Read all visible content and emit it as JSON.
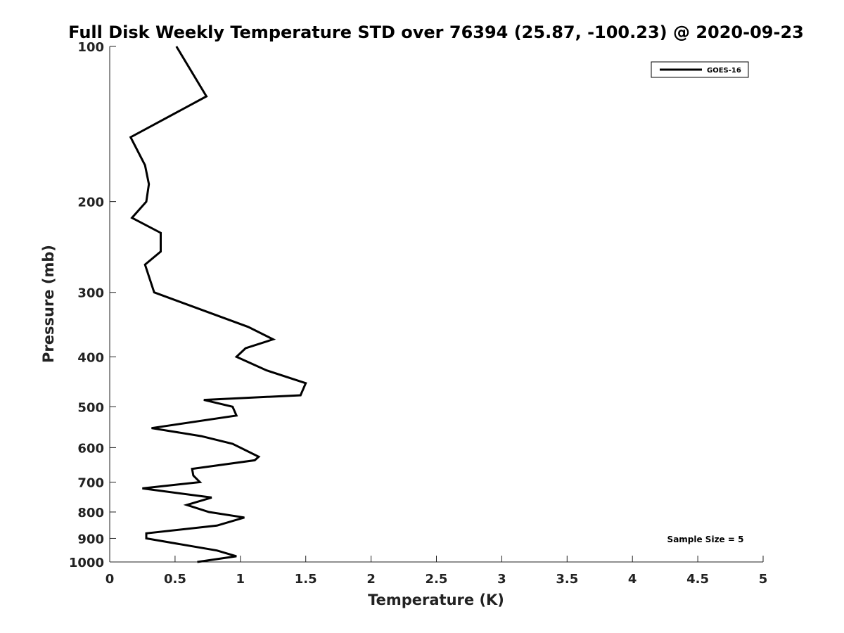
{
  "chart_data": {
    "type": "line",
    "title": "Full Disk Weekly Temperature STD over 76394 (25.87, -100.23) @ 2020-09-23",
    "xlabel": "Temperature (K)",
    "ylabel": "Pressure (mb)",
    "xlim": [
      0,
      5
    ],
    "ylim": [
      100,
      1000
    ],
    "yscale": "log",
    "yaxis_reversed": true,
    "x_ticks": [
      "0",
      "0.5",
      "1",
      "1.5",
      "2",
      "2.5",
      "3",
      "3.5",
      "4",
      "4.5",
      "5"
    ],
    "y_ticks": [
      "100",
      "200",
      "300",
      "400",
      "500",
      "600",
      "700",
      "800",
      "900",
      "1000"
    ],
    "grid": false,
    "legend_position": "top-right",
    "annotation": "Sample Size = 5",
    "series": [
      {
        "name": "GOES-16",
        "color": "#000000",
        "points": [
          {
            "x": 0.51,
            "y": 100
          },
          {
            "x": 0.74,
            "y": 125
          },
          {
            "x": 0.16,
            "y": 150
          },
          {
            "x": 0.27,
            "y": 170
          },
          {
            "x": 0.3,
            "y": 185
          },
          {
            "x": 0.28,
            "y": 200
          },
          {
            "x": 0.17,
            "y": 215
          },
          {
            "x": 0.39,
            "y": 230
          },
          {
            "x": 0.39,
            "y": 250
          },
          {
            "x": 0.27,
            "y": 265
          },
          {
            "x": 0.34,
            "y": 300
          },
          {
            "x": 1.06,
            "y": 350
          },
          {
            "x": 1.25,
            "y": 370
          },
          {
            "x": 1.04,
            "y": 385
          },
          {
            "x": 0.97,
            "y": 400
          },
          {
            "x": 1.2,
            "y": 425
          },
          {
            "x": 1.5,
            "y": 450
          },
          {
            "x": 1.46,
            "y": 475
          },
          {
            "x": 0.72,
            "y": 485
          },
          {
            "x": 0.94,
            "y": 500
          },
          {
            "x": 0.97,
            "y": 520
          },
          {
            "x": 0.32,
            "y": 550
          },
          {
            "x": 0.7,
            "y": 570
          },
          {
            "x": 0.94,
            "y": 590
          },
          {
            "x": 1.14,
            "y": 625
          },
          {
            "x": 1.11,
            "y": 635
          },
          {
            "x": 0.63,
            "y": 660
          },
          {
            "x": 0.64,
            "y": 680
          },
          {
            "x": 0.69,
            "y": 700
          },
          {
            "x": 0.25,
            "y": 720
          },
          {
            "x": 0.78,
            "y": 750
          },
          {
            "x": 0.59,
            "y": 775
          },
          {
            "x": 0.76,
            "y": 800
          },
          {
            "x": 1.03,
            "y": 820
          },
          {
            "x": 0.82,
            "y": 850
          },
          {
            "x": 0.28,
            "y": 880
          },
          {
            "x": 0.28,
            "y": 900
          },
          {
            "x": 0.82,
            "y": 950
          },
          {
            "x": 0.97,
            "y": 975
          },
          {
            "x": 0.67,
            "y": 1000
          }
        ]
      }
    ]
  }
}
